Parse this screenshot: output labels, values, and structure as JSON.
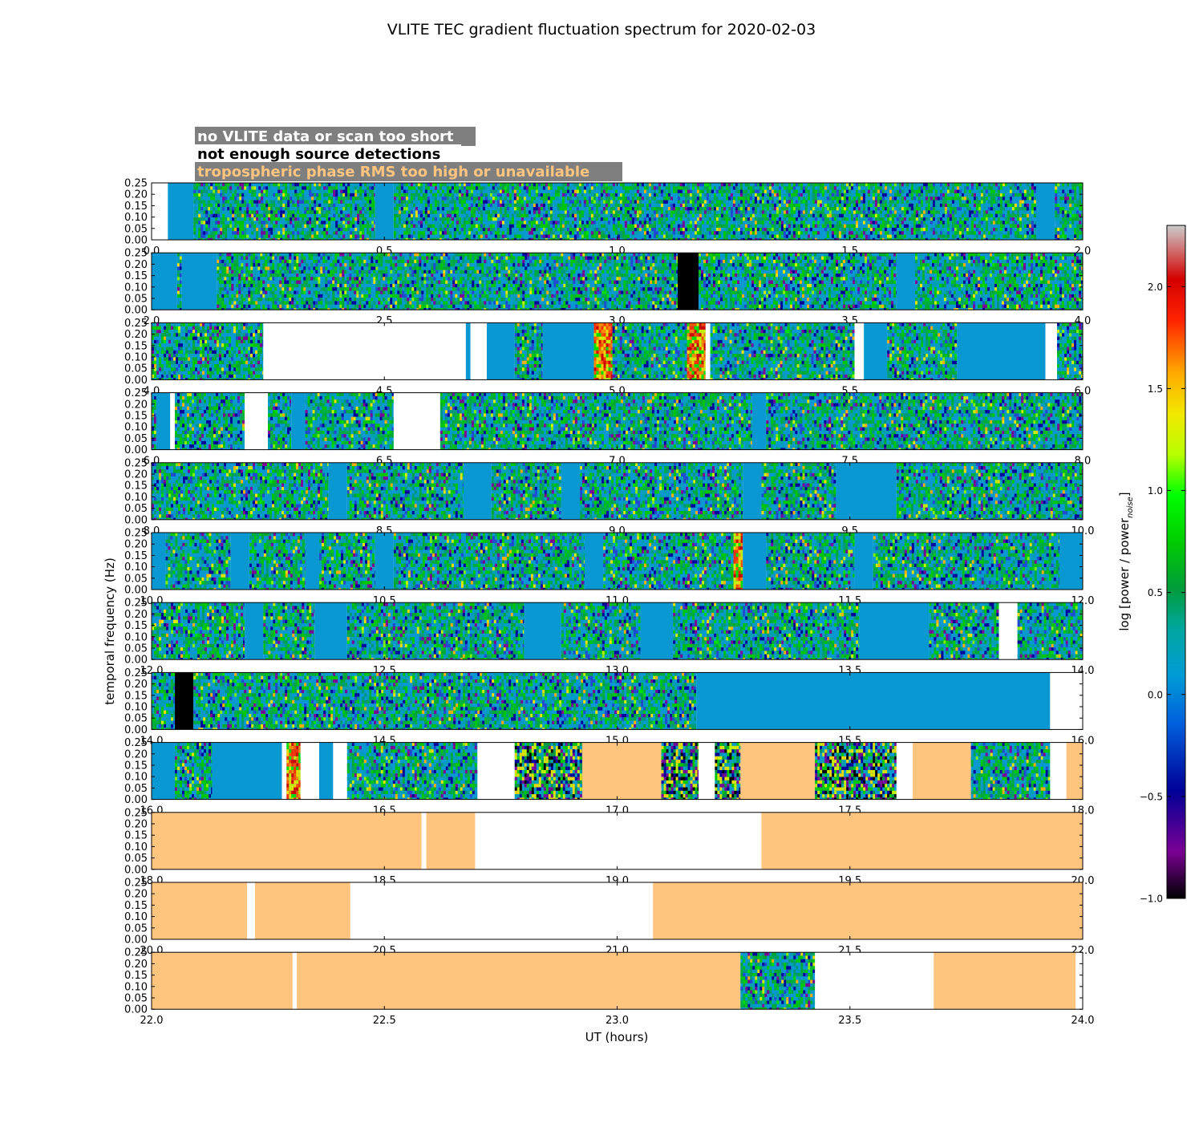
{
  "title": "VLITE TEC gradient fluctuation spectrum for 2020-02-03",
  "legend": [
    {
      "text": "no VLITE data or scan too short",
      "color": "#ffffff"
    },
    {
      "text": "not enough source detections",
      "color": "#000000"
    },
    {
      "text": "tropospheric phase RMS too high or unavailable",
      "color": "#ffc57f"
    }
  ],
  "chart_data": {
    "type": "heatmap",
    "xlabel": "UT (hours)",
    "ylabel": "temporal frequency (Hz)",
    "colorbar_label_main": "log [power / power",
    "colorbar_label_sub": "noise",
    "colorbar_label_end": "]",
    "ylim": [
      0,
      0.25
    ],
    "y_ticks": [
      "0.00",
      "0.05",
      "0.10",
      "0.15",
      "0.20",
      "0.25"
    ],
    "colorbar_range": [
      -1.0,
      2.3
    ],
    "colorbar_ticks": [
      "−1.0",
      "−0.5",
      "0.0",
      "0.5",
      "1.0",
      "1.5",
      "2.0"
    ],
    "colorbar_tick_values": [
      -1.0,
      -0.5,
      0.0,
      0.5,
      1.0,
      1.5,
      2.0
    ],
    "colormap": "nipy_spectral",
    "colors": {
      "no_data": "#ffffff",
      "few_sources": "#000000",
      "tropo": "#ffc57f",
      "baseline": "#0a98d2"
    },
    "panels": [
      {
        "range": [
          0.0,
          2.0
        ],
        "xticks": [
          "0.0",
          "0.5",
          "1.0",
          "1.5",
          "2.0"
        ],
        "segments": [
          [
            "white",
            0.0,
            0.035
          ],
          [
            "blue",
            0.035,
            0.09
          ],
          [
            "data",
            0.09,
            0.48
          ],
          [
            "blue",
            0.48,
            0.52
          ],
          [
            "data",
            0.52,
            1.9
          ],
          [
            "blue",
            1.9,
            1.94
          ],
          [
            "data",
            1.94,
            2.0
          ]
        ]
      },
      {
        "range": [
          2.0,
          4.0
        ],
        "xticks": [
          "2.0",
          "2.5",
          "3.0",
          "3.5",
          "4.0"
        ],
        "segments": [
          [
            "blue",
            2.0,
            2.055
          ],
          [
            "data",
            2.055,
            2.065
          ],
          [
            "blue",
            2.065,
            2.14
          ],
          [
            "data",
            2.14,
            3.13
          ],
          [
            "black",
            3.13,
            3.175
          ],
          [
            "data",
            3.175,
            3.18
          ],
          [
            "data",
            3.18,
            3.6
          ],
          [
            "blue",
            3.6,
            3.64
          ],
          [
            "data",
            3.64,
            4.0
          ]
        ]
      },
      {
        "range": [
          4.0,
          6.0
        ],
        "xticks": [
          "4.0",
          "4.5",
          "5.0",
          "5.5",
          "6.0"
        ],
        "segments": [
          [
            "data",
            4.0,
            4.24
          ],
          [
            "white",
            4.24,
            4.675
          ],
          [
            "blue",
            4.675,
            4.685
          ],
          [
            "white",
            4.685,
            4.72
          ],
          [
            "blue",
            4.72,
            4.78
          ],
          [
            "data",
            4.78,
            4.84
          ],
          [
            "blue",
            4.84,
            4.95
          ],
          [
            "hot",
            4.95,
            4.99
          ],
          [
            "data",
            4.99,
            5.15
          ],
          [
            "hot",
            5.15,
            5.19
          ],
          [
            "white",
            5.19,
            5.2
          ],
          [
            "data",
            5.2,
            5.51
          ],
          [
            "white",
            5.51,
            5.53
          ],
          [
            "blue",
            5.53,
            5.58
          ],
          [
            "data",
            5.58,
            5.73
          ],
          [
            "blue",
            5.73,
            5.92
          ],
          [
            "white",
            5.92,
            5.945
          ],
          [
            "data",
            5.945,
            6.0
          ]
        ]
      },
      {
        "range": [
          6.0,
          8.0
        ],
        "xticks": [
          "6.0",
          "6.5",
          "7.0",
          "7.5",
          "8.0"
        ],
        "segments": [
          [
            "data",
            6.0,
            6.01
          ],
          [
            "blue",
            6.01,
            6.04
          ],
          [
            "white",
            6.04,
            6.05
          ],
          [
            "data",
            6.05,
            6.2
          ],
          [
            "white",
            6.2,
            6.25
          ],
          [
            "data",
            6.25,
            6.3
          ],
          [
            "blue",
            6.3,
            6.33
          ],
          [
            "data",
            6.33,
            6.52
          ],
          [
            "white",
            6.52,
            6.62
          ],
          [
            "data",
            6.62,
            7.29
          ],
          [
            "blue",
            7.29,
            7.32
          ],
          [
            "data",
            7.32,
            8.0
          ]
        ]
      },
      {
        "range": [
          8.0,
          10.0
        ],
        "xticks": [
          "8.0",
          "8.5",
          "9.0",
          "9.5",
          "10.0"
        ],
        "segments": [
          [
            "data",
            8.0,
            8.38
          ],
          [
            "blue",
            8.38,
            8.42
          ],
          [
            "data",
            8.42,
            8.67
          ],
          [
            "blue",
            8.67,
            8.73
          ],
          [
            "data",
            8.73,
            8.88
          ],
          [
            "blue",
            8.88,
            8.92
          ],
          [
            "data",
            8.92,
            9.27
          ],
          [
            "blue",
            9.27,
            9.31
          ],
          [
            "data",
            9.31,
            9.47
          ],
          [
            "blue",
            9.47,
            9.6
          ],
          [
            "data",
            9.6,
            10.0
          ]
        ]
      },
      {
        "range": [
          10.0,
          12.0
        ],
        "xticks": [
          "10.0",
          "10.5",
          "11.0",
          "11.5",
          "12.0"
        ],
        "segments": [
          [
            "blue",
            10.0,
            10.03
          ],
          [
            "data",
            10.03,
            10.17
          ],
          [
            "blue",
            10.17,
            10.21
          ],
          [
            "data",
            10.21,
            10.33
          ],
          [
            "blue",
            10.33,
            10.36
          ],
          [
            "data",
            10.36,
            10.48
          ],
          [
            "blue",
            10.48,
            10.52
          ],
          [
            "data",
            10.52,
            10.93
          ],
          [
            "blue",
            10.93,
            10.97
          ],
          [
            "data",
            10.97,
            11.25
          ],
          [
            "hot",
            11.25,
            11.27
          ],
          [
            "blue",
            11.27,
            11.32
          ],
          [
            "data",
            11.32,
            11.51
          ],
          [
            "blue",
            11.51,
            11.55
          ],
          [
            "data",
            11.55,
            11.95
          ],
          [
            "blue",
            11.95,
            12.0
          ]
        ]
      },
      {
        "range": [
          12.0,
          14.0
        ],
        "xticks": [
          "12.0",
          "12.5",
          "13.0",
          "13.5",
          "14.0"
        ],
        "segments": [
          [
            "data",
            12.0,
            12.2
          ],
          [
            "blue",
            12.2,
            12.24
          ],
          [
            "data",
            12.24,
            12.35
          ],
          [
            "blue",
            12.35,
            12.42
          ],
          [
            "data",
            12.42,
            12.8
          ],
          [
            "blue",
            12.8,
            12.88
          ],
          [
            "data",
            12.88,
            13.05
          ],
          [
            "blue",
            13.05,
            13.12
          ],
          [
            "data",
            13.12,
            13.52
          ],
          [
            "blue",
            13.52,
            13.67
          ],
          [
            "data",
            13.67,
            13.82
          ],
          [
            "white",
            13.82,
            13.86
          ],
          [
            "data",
            13.86,
            14.0
          ]
        ]
      },
      {
        "range": [
          14.0,
          16.0
        ],
        "xticks": [
          "14.0",
          "14.5",
          "15.0",
          "15.5",
          "16.0"
        ],
        "segments": [
          [
            "data",
            14.0,
            14.05
          ],
          [
            "black",
            14.05,
            14.09
          ],
          [
            "data",
            14.09,
            15.17
          ],
          [
            "blue",
            15.17,
            15.93
          ],
          [
            "white",
            15.93,
            16.0
          ]
        ]
      },
      {
        "range": [
          16.0,
          18.0
        ],
        "xticks": [
          "16.0",
          "16.5",
          "17.0",
          "17.5",
          "18.0"
        ],
        "segments": [
          [
            "blue",
            16.0,
            16.05
          ],
          [
            "data",
            16.05,
            16.13
          ],
          [
            "blue",
            16.13,
            16.28
          ],
          [
            "white",
            16.28,
            16.29
          ],
          [
            "hot",
            16.29,
            16.32
          ],
          [
            "white",
            16.32,
            16.36
          ],
          [
            "blue",
            16.36,
            16.39
          ],
          [
            "white",
            16.39,
            16.42
          ],
          [
            "data",
            16.42,
            16.7
          ],
          [
            "white",
            16.7,
            16.78
          ],
          [
            "dense",
            16.78,
            16.925
          ],
          [
            "tropo",
            16.925,
            17.095
          ],
          [
            "dense",
            17.095,
            17.175
          ],
          [
            "white",
            17.175,
            17.21
          ],
          [
            "dense",
            17.21,
            17.265
          ],
          [
            "tropo",
            17.265,
            17.425
          ],
          [
            "dense",
            17.425,
            17.6
          ],
          [
            "white",
            17.6,
            17.635
          ],
          [
            "tropo",
            17.635,
            17.76
          ],
          [
            "data",
            17.76,
            17.93
          ],
          [
            "white",
            17.93,
            17.965
          ],
          [
            "tropo",
            17.965,
            18.0
          ]
        ]
      },
      {
        "range": [
          18.0,
          20.0
        ],
        "xticks": [
          "18.0",
          "18.5",
          "19.0",
          "19.5",
          "20.0"
        ],
        "segments": [
          [
            "tropo",
            18.0,
            18.58
          ],
          [
            "white",
            18.58,
            18.59
          ],
          [
            "tropo",
            18.59,
            18.695
          ],
          [
            "white",
            18.695,
            19.31
          ],
          [
            "tropo",
            19.31,
            20.0
          ]
        ]
      },
      {
        "range": [
          20.0,
          22.0
        ],
        "xticks": [
          "20.0",
          "20.5",
          "21.0",
          "21.5",
          "22.0"
        ],
        "segments": [
          [
            "tropo",
            20.0,
            20.205
          ],
          [
            "white",
            20.205,
            20.222
          ],
          [
            "tropo",
            20.222,
            20.427
          ],
          [
            "white",
            20.427,
            21.077
          ],
          [
            "tropo",
            21.077,
            22.0
          ]
        ]
      },
      {
        "range": [
          22.0,
          24.0
        ],
        "xticks": [
          "22.0",
          "22.5",
          "23.0",
          "23.5",
          "24.0"
        ],
        "segments": [
          [
            "tropo",
            22.0,
            22.303
          ],
          [
            "white",
            22.303,
            22.312
          ],
          [
            "tropo",
            22.312,
            23.265
          ],
          [
            "data",
            23.265,
            23.425
          ],
          [
            "white",
            23.425,
            23.68
          ],
          [
            "tropo",
            23.68,
            23.985
          ],
          [
            "white",
            23.985,
            24.0
          ]
        ]
      }
    ]
  }
}
